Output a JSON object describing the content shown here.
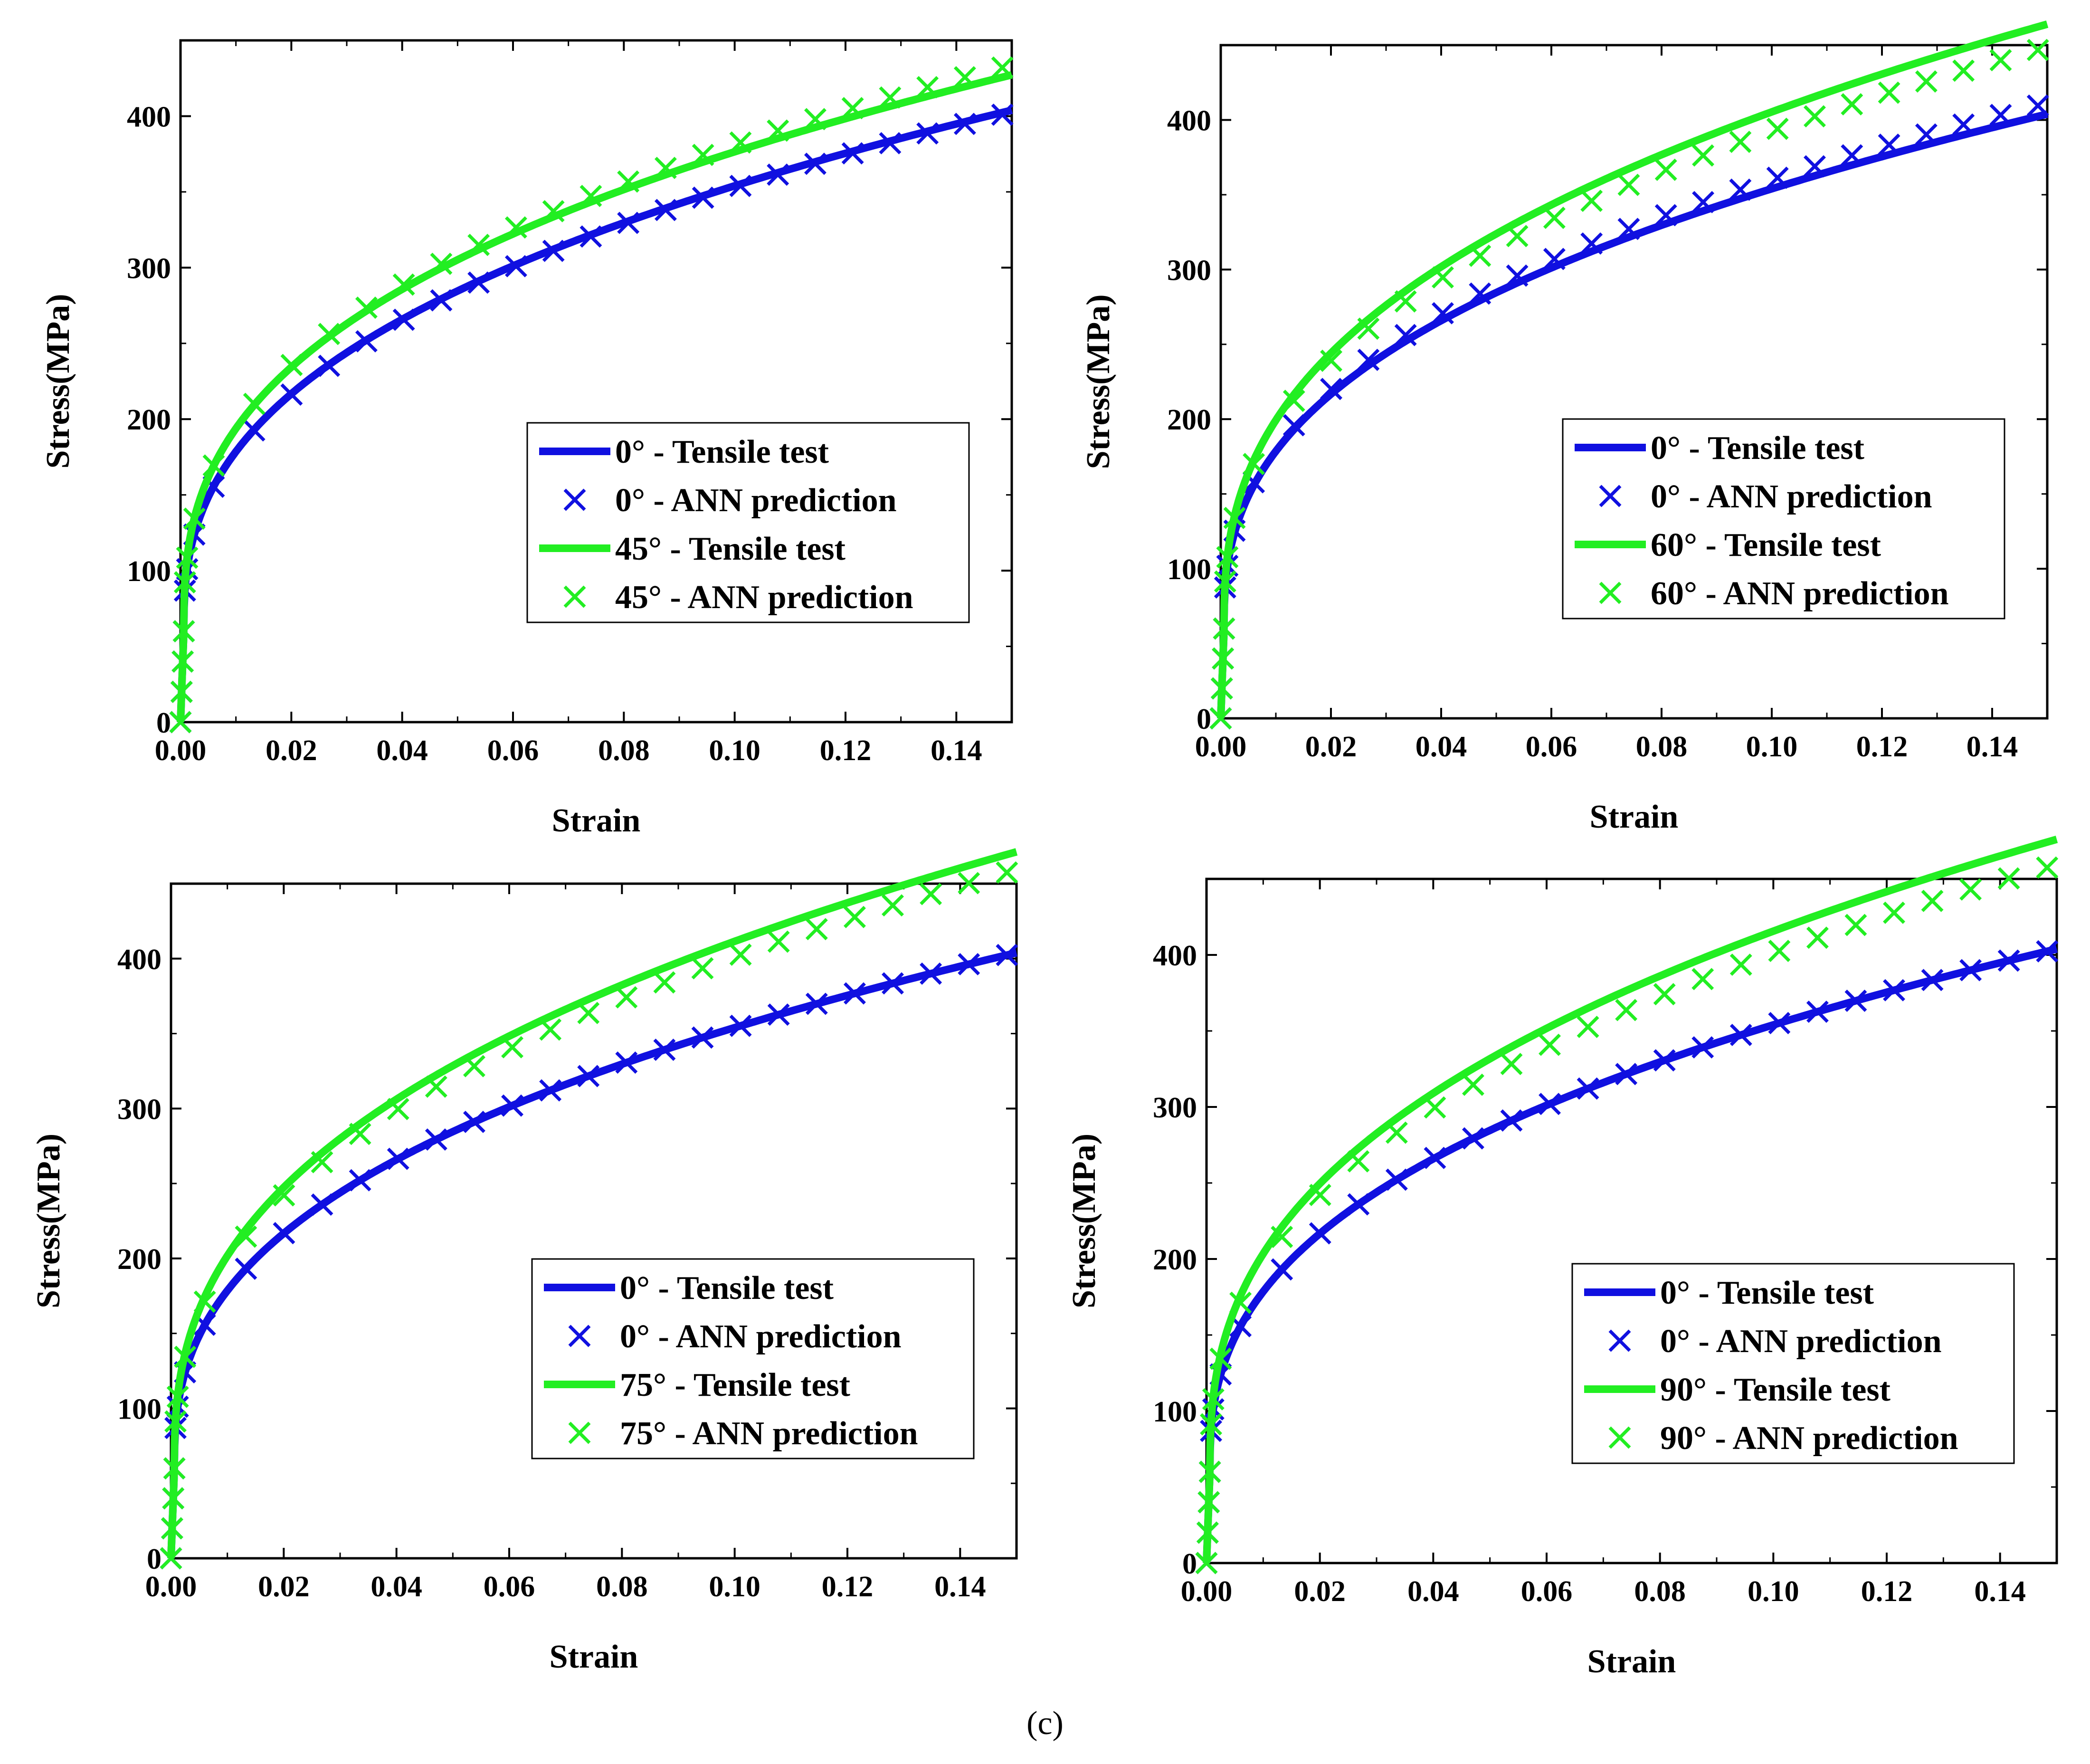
{
  "figure": {
    "caption": "(c)"
  },
  "colors": {
    "blue": "#1010e0",
    "green": "#22ee22",
    "axis": "#000000"
  },
  "chart_data": [
    {
      "type": "line",
      "xlabel": "Strain",
      "ylabel": "Stress(MPa)",
      "xlim": [
        0,
        0.15
      ],
      "ylim": [
        0,
        450
      ],
      "xticks": [
        "0.00",
        "0.02",
        "0.04",
        "0.06",
        "0.08",
        "0.10",
        "0.12",
        "0.14"
      ],
      "yticks": [
        "0",
        "100",
        "200",
        "300",
        "400"
      ],
      "legend_position": "lower-right",
      "series": [
        {
          "name": "0° - Tensile test",
          "kind": "line",
          "color": "#1010e0",
          "yield": 60,
          "k": 715,
          "n": 0.385
        },
        {
          "name": "0° - ANN prediction",
          "kind": "markers",
          "color": "#1010e0",
          "yield": 60,
          "k": 712,
          "n": 0.385
        },
        {
          "name": "45° - Tensile test",
          "kind": "line",
          "color": "#22ee22",
          "yield": 60,
          "k": 735,
          "n": 0.365
        },
        {
          "name": "45° - ANN prediction",
          "kind": "markers",
          "color": "#22ee22",
          "yield": 60,
          "k": 755,
          "n": 0.37
        }
      ]
    },
    {
      "type": "line",
      "xlabel": "Strain",
      "ylabel": "Stress(MPa)",
      "xlim": [
        0,
        0.15
      ],
      "ylim": [
        0,
        450
      ],
      "xticks": [
        "0.00",
        "0.02",
        "0.04",
        "0.06",
        "0.08",
        "0.10",
        "0.12",
        "0.14"
      ],
      "yticks": [
        "0",
        "100",
        "200",
        "300",
        "400"
      ],
      "legend_position": "lower-right",
      "series": [
        {
          "name": "0° - Tensile test",
          "kind": "line",
          "color": "#1010e0",
          "yield": 60,
          "k": 715,
          "n": 0.385
        },
        {
          "name": "0° - ANN prediction",
          "kind": "markers",
          "color": "#1010e0",
          "yield": 60,
          "k": 730,
          "n": 0.385
        },
        {
          "name": "60° - Tensile test",
          "kind": "line",
          "color": "#22ee22",
          "yield": 60,
          "k": 840,
          "n": 0.385
        },
        {
          "name": "60° - ANN prediction",
          "kind": "markers",
          "color": "#22ee22",
          "yield": 60,
          "k": 800,
          "n": 0.38
        }
      ]
    },
    {
      "type": "line",
      "xlabel": "Strain",
      "ylabel": "Stress(MPa)",
      "xlim": [
        0,
        0.15
      ],
      "ylim": [
        0,
        450
      ],
      "xticks": [
        "0.00",
        "0.02",
        "0.04",
        "0.06",
        "0.08",
        "0.10",
        "0.12",
        "0.14"
      ],
      "yticks": [
        "0",
        "100",
        "200",
        "300",
        "400"
      ],
      "legend_position": "lower-right",
      "series": [
        {
          "name": "0° - Tensile test",
          "kind": "line",
          "color": "#1010e0",
          "yield": 60,
          "k": 715,
          "n": 0.385
        },
        {
          "name": "0° - ANN prediction",
          "kind": "markers",
          "color": "#1010e0",
          "yield": 60,
          "k": 715,
          "n": 0.385
        },
        {
          "name": "75° - Tensile test",
          "kind": "line",
          "color": "#22ee22",
          "yield": 60,
          "k": 855,
          "n": 0.385
        },
        {
          "name": "75° - ANN prediction",
          "kind": "markers",
          "color": "#22ee22",
          "yield": 60,
          "k": 830,
          "n": 0.385
        }
      ]
    },
    {
      "type": "line",
      "xlabel": "Strain",
      "ylabel": "Stress(MPa)",
      "xlim": [
        0,
        0.15
      ],
      "ylim": [
        0,
        450
      ],
      "xticks": [
        "0.00",
        "0.02",
        "0.04",
        "0.06",
        "0.08",
        "0.10",
        "0.12",
        "0.14"
      ],
      "yticks": [
        "0",
        "100",
        "200",
        "300",
        "400"
      ],
      "legend_position": "lower-right",
      "series": [
        {
          "name": "0° - Tensile test",
          "kind": "line",
          "color": "#1010e0",
          "yield": 60,
          "k": 715,
          "n": 0.385
        },
        {
          "name": "0° - ANN prediction",
          "kind": "markers",
          "color": "#1010e0",
          "yield": 60,
          "k": 715,
          "n": 0.385
        },
        {
          "name": "90° - Tensile test",
          "kind": "line",
          "color": "#22ee22",
          "yield": 60,
          "k": 865,
          "n": 0.385
        },
        {
          "name": "90° - ANN prediction",
          "kind": "markers",
          "color": "#22ee22",
          "yield": 60,
          "k": 830,
          "n": 0.385
        }
      ]
    }
  ]
}
